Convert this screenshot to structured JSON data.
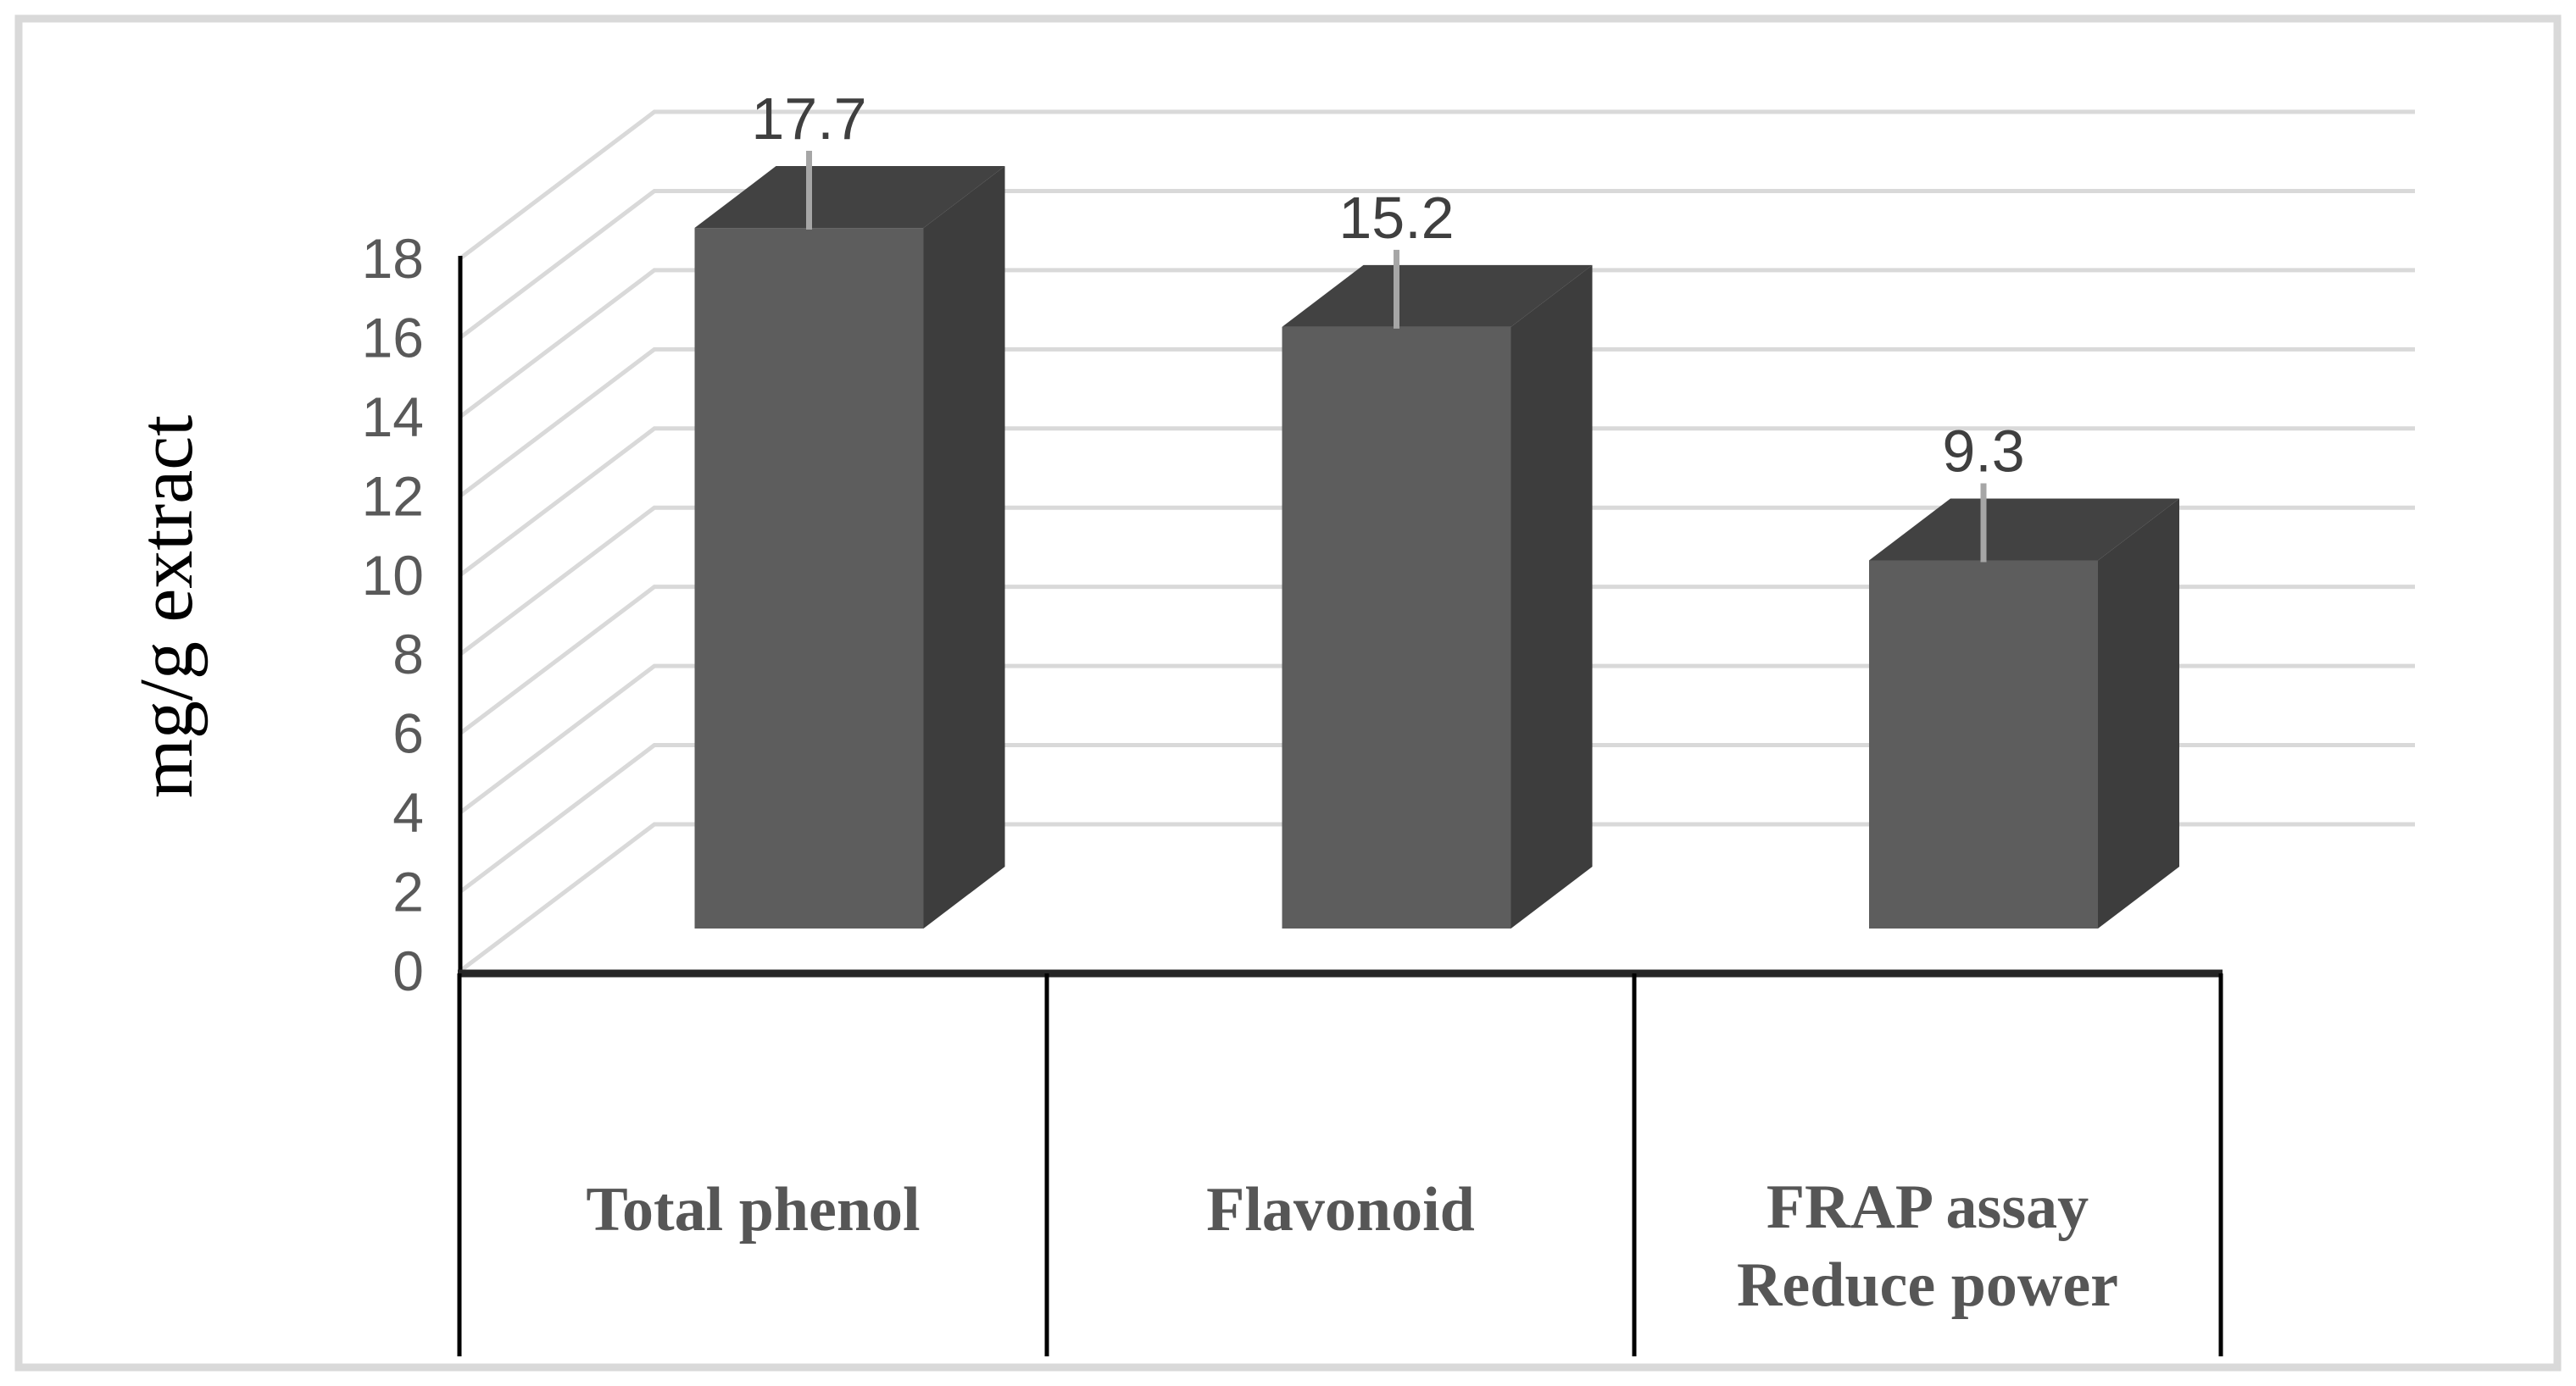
{
  "figure": {
    "kind": "3d-column-chart"
  },
  "chart_data": {
    "type": "bar",
    "projection": "3d",
    "categories": [
      "Total phenol",
      "Flavonoid",
      "FRAP assay Reduce power"
    ],
    "category_lines": [
      [
        "Total phenol"
      ],
      [
        "Flavonoid"
      ],
      [
        "FRAP assay",
        "Reduce power"
      ]
    ],
    "values": [
      17.7,
      15.2,
      9.3
    ],
    "data_labels": [
      "17.7",
      "15.2",
      "9.3"
    ],
    "error_bars": true,
    "ylabel": "mg/g extract",
    "ylim": [
      0,
      18
    ],
    "yticks": [
      0,
      2,
      4,
      6,
      8,
      10,
      12,
      14,
      16,
      18
    ],
    "grid": true,
    "legend": false,
    "colors": {
      "bar_front": "#5D5D5D",
      "bar_top": "#424242",
      "bar_side": "#3D3D3D",
      "gridline": "#D9D9D9",
      "error_bar": "#A6A6A6",
      "tick_text": "#595959",
      "data_label_text": "#3F3F3F",
      "category_text": "#565656",
      "axis_line": "#000000",
      "table_line": "#262626",
      "border": "#D9D9D9",
      "background": "#FFFFFF"
    }
  }
}
